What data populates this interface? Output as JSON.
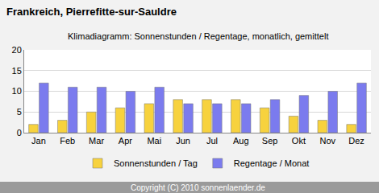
{
  "chart_data": {
    "type": "bar",
    "title": "Frankreich, Pierrefitte-sur-Sauldre",
    "subtitle": "Klimadiagramm: Sonnenstunden / Regentage, monatlich, gemittelt",
    "categories": [
      "Jan",
      "Feb",
      "Mar",
      "Apr",
      "Mai",
      "Jun",
      "Jul",
      "Aug",
      "Sep",
      "Okt",
      "Nov",
      "Dez"
    ],
    "series": [
      {
        "name": "Sonnenstunden / Tag",
        "color": "#f7d23e",
        "values": [
          2,
          3,
          5,
          6,
          7,
          8,
          8,
          8,
          6,
          4,
          3,
          2
        ]
      },
      {
        "name": "Regentage / Monat",
        "color": "#7b7bee",
        "values": [
          12,
          11,
          11,
          10,
          11,
          7,
          7,
          7,
          8,
          9,
          10,
          12
        ]
      }
    ],
    "ylim": [
      0,
      20
    ],
    "yticks": [
      0,
      5,
      10,
      15,
      20
    ],
    "grid": true,
    "legend": "bottom",
    "annotations": [
      "Copyright (C) 2010 sonnenlaender.de"
    ]
  }
}
